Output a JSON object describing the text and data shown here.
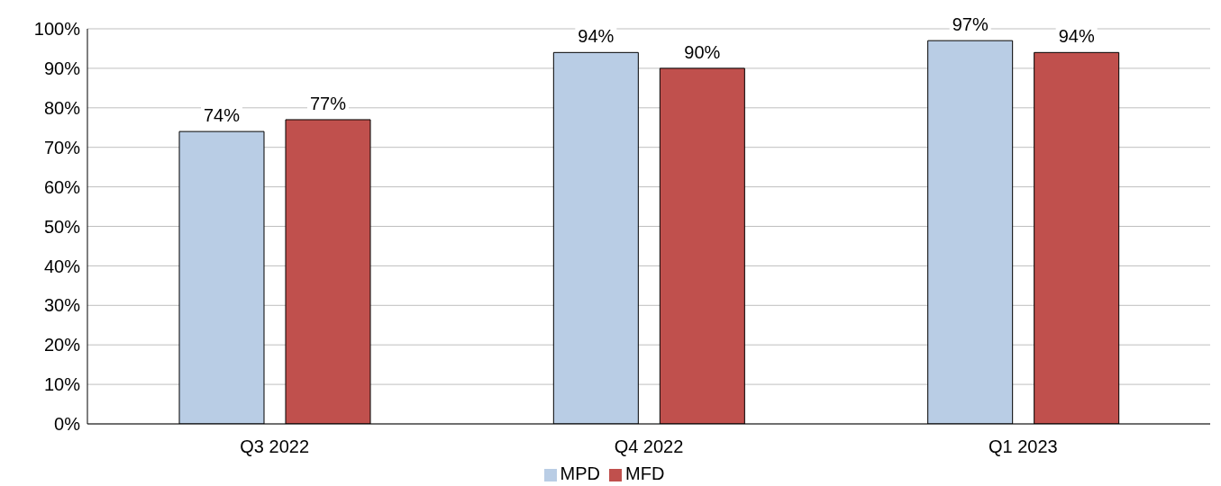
{
  "chart_data": {
    "type": "bar",
    "categories": [
      "Q3 2022",
      "Q4 2022",
      "Q1 2023"
    ],
    "series": [
      {
        "name": "MPD",
        "color": "#b9cde5",
        "values": [
          74,
          94,
          97
        ],
        "value_labels": [
          "74%",
          "94%",
          "97%"
        ]
      },
      {
        "name": "MFD",
        "color": "#c0504d",
        "values": [
          77,
          90,
          94
        ],
        "value_labels": [
          "77%",
          "90%",
          "94%"
        ]
      }
    ],
    "ylim": [
      0,
      100
    ],
    "yticks": [
      {
        "value": 0,
        "label": "0%"
      },
      {
        "value": 10,
        "label": "10%"
      },
      {
        "value": 20,
        "label": "20%"
      },
      {
        "value": 30,
        "label": "30%"
      },
      {
        "value": 40,
        "label": "40%"
      },
      {
        "value": 50,
        "label": "50%"
      },
      {
        "value": 60,
        "label": "60%"
      },
      {
        "value": 70,
        "label": "70%"
      },
      {
        "value": 80,
        "label": "80%"
      },
      {
        "value": 90,
        "label": "90%"
      },
      {
        "value": 100,
        "label": "100%"
      }
    ],
    "grid": "y",
    "legend": "bottom"
  }
}
